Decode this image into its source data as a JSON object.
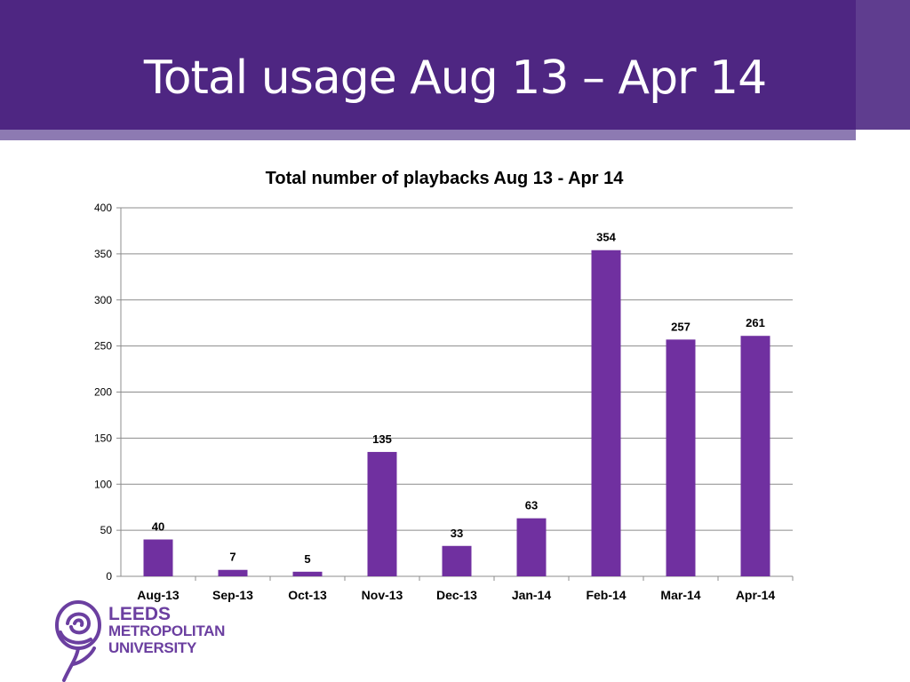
{
  "slide": {
    "title": "Total usage Aug 13 – Apr 14"
  },
  "logo": {
    "line1": "LEEDS",
    "line2": "METROPOLITAN",
    "line3": "UNIVERSITY",
    "icon": "rose-icon"
  },
  "colors": {
    "header": "#4e2682",
    "strip": "#8d7ab2",
    "bar": "#7030a0",
    "logo": "#6b3fa0"
  },
  "chart_data": {
    "type": "bar",
    "title": "Total number of playbacks Aug 13 - Apr 14",
    "xlabel": "",
    "ylabel": "",
    "categories": [
      "Aug-13",
      "Sep-13",
      "Oct-13",
      "Nov-13",
      "Dec-13",
      "Jan-14",
      "Feb-14",
      "Mar-14",
      "Apr-14"
    ],
    "values": [
      40,
      7,
      5,
      135,
      33,
      63,
      354,
      257,
      261
    ],
    "ylim": [
      0,
      400
    ],
    "yticks": [
      0,
      50,
      100,
      150,
      200,
      250,
      300,
      350,
      400
    ],
    "grid": true,
    "legend": "none"
  }
}
